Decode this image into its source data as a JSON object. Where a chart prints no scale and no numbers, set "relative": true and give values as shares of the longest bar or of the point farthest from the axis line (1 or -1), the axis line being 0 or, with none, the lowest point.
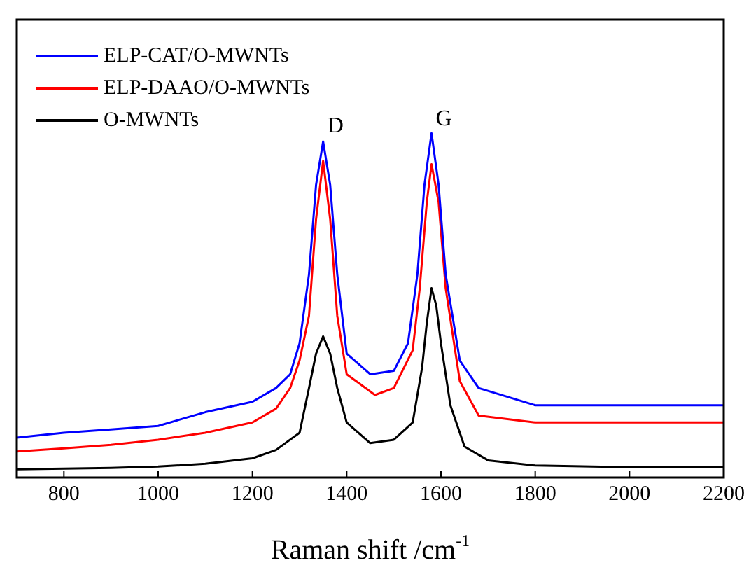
{
  "chart_data": {
    "type": "line",
    "xlabel": "Raman shift /cm$^{-1}$",
    "xlim": [
      700,
      2200
    ],
    "xticks": [
      800,
      1000,
      1200,
      1400,
      1600,
      1800,
      2000,
      2200
    ],
    "relative": true,
    "legend": "top left",
    "grid": false,
    "marker": "none",
    "line_style": "solid",
    "annotations": [
      {
        "text": "D",
        "x": 1350,
        "y": 0.98
      },
      {
        "text": "G",
        "x": 1580,
        "y": 1.0
      }
    ],
    "series": [
      {
        "name": "ELP-CAT/O-MWNTs",
        "color": "#0000ff",
        "x": [
          700,
          800,
          900,
          1000,
          1100,
          1200,
          1250,
          1280,
          1300,
          1320,
          1335,
          1350,
          1365,
          1380,
          1400,
          1450,
          1500,
          1530,
          1550,
          1565,
          1580,
          1595,
          1610,
          1640,
          1680,
          1800,
          2000,
          2200
        ],
        "values": [
          0.116,
          0.13,
          0.14,
          0.15,
          0.19,
          0.22,
          0.26,
          0.3,
          0.39,
          0.59,
          0.85,
          0.976,
          0.85,
          0.59,
          0.36,
          0.3,
          0.31,
          0.39,
          0.59,
          0.85,
          1.0,
          0.85,
          0.59,
          0.34,
          0.26,
          0.21,
          0.21,
          0.21
        ]
      },
      {
        "name": "ELP-DAAO/O-MWNTs",
        "color": "#ff0000",
        "x": [
          700,
          800,
          900,
          1000,
          1100,
          1200,
          1250,
          1280,
          1300,
          1320,
          1335,
          1350,
          1365,
          1380,
          1400,
          1460,
          1500,
          1540,
          1555,
          1570,
          1580,
          1595,
          1610,
          1640,
          1680,
          1800,
          2000,
          2200
        ],
        "values": [
          0.076,
          0.085,
          0.095,
          0.11,
          0.13,
          0.16,
          0.2,
          0.26,
          0.34,
          0.47,
          0.75,
          0.92,
          0.75,
          0.47,
          0.3,
          0.24,
          0.26,
          0.37,
          0.55,
          0.8,
          0.91,
          0.8,
          0.55,
          0.28,
          0.18,
          0.16,
          0.16,
          0.16
        ]
      },
      {
        "name": "O-MWNTs",
        "color": "#000000",
        "x": [
          700,
          800,
          900,
          1000,
          1100,
          1200,
          1250,
          1300,
          1320,
          1335,
          1350,
          1365,
          1380,
          1400,
          1450,
          1500,
          1540,
          1560,
          1570,
          1580,
          1590,
          1600,
          1620,
          1650,
          1700,
          1800,
          2000,
          2200
        ],
        "values": [
          0.024,
          0.026,
          0.028,
          0.032,
          0.04,
          0.056,
          0.08,
          0.13,
          0.26,
          0.36,
          0.41,
          0.36,
          0.26,
          0.16,
          0.1,
          0.11,
          0.16,
          0.32,
          0.45,
          0.55,
          0.5,
          0.39,
          0.21,
          0.09,
          0.05,
          0.035,
          0.03,
          0.03
        ]
      }
    ]
  }
}
